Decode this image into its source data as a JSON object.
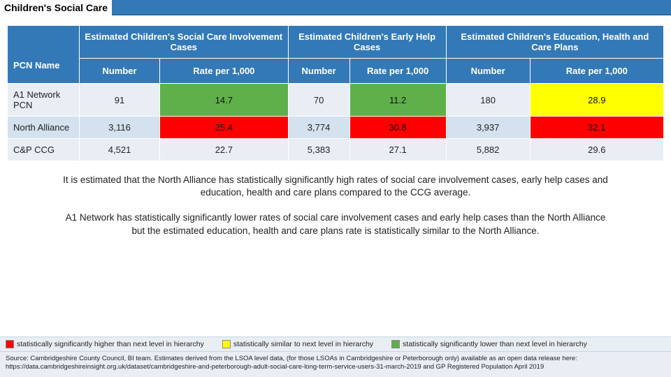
{
  "title": "Children's Social Care",
  "table": {
    "pcn_header": "PCN Name",
    "groups": [
      "Estimated Children's Social Care Involvement Cases",
      "Estimated Children's Early Help Cases",
      "Estimated Children's Education, Health and Care Plans"
    ],
    "sub_number": "Number",
    "sub_rate": "Rate per 1,000",
    "rows": [
      {
        "name": "A1 Network PCN",
        "n1": "91",
        "r1": "14.7",
        "r1c": "green",
        "n2": "70",
        "r2": "11.2",
        "r2c": "green",
        "n3": "180",
        "r3": "28.9",
        "r3c": "yellow",
        "cls": "odd"
      },
      {
        "name": "North Alliance",
        "n1": "3,116",
        "r1": "25.4",
        "r1c": "red",
        "n2": "3,774",
        "r2": "30.8",
        "r2c": "red",
        "n3": "3,937",
        "r3": "32.1",
        "r3c": "red",
        "cls": "even"
      },
      {
        "name": "C&P CCG",
        "n1": "4,521",
        "r1": "22.7",
        "r1c": "",
        "n2": "5,383",
        "r2": "27.1",
        "r2c": "",
        "n3": "5,882",
        "r3": "29.6",
        "r3c": "",
        "cls": "odd"
      }
    ]
  },
  "para1": "It is estimated that the North Alliance has statistically significantly high rates of social care involvement cases, early help cases and education, health and care plans compared to the CCG average.",
  "para2": "A1 Network has statistically significantly lower rates of social care involvement cases and early help cases than the North Alliance but the estimated education, health and care plans rate is statistically similar to the North Alliance.",
  "legend": {
    "high": "statistically significantly higher than next level in hierarchy",
    "sim": "statistically similar to next level in hierarchy",
    "low": "statistically significantly lower than next level in hierarchy"
  },
  "source": "Source: Cambridgeshire County Council, BI team.  Estimates derived from the LSOA level data, (for those LSOAs in Cambridgeshire or Peterborough only) available as an open data release here: https://data.cambridgeshireinsight.org.uk/dataset/cambridgeshire-and-peterborough-adult-social-care-long-term-service-users-31-march-2019 and GP Registered Population April 2019"
}
